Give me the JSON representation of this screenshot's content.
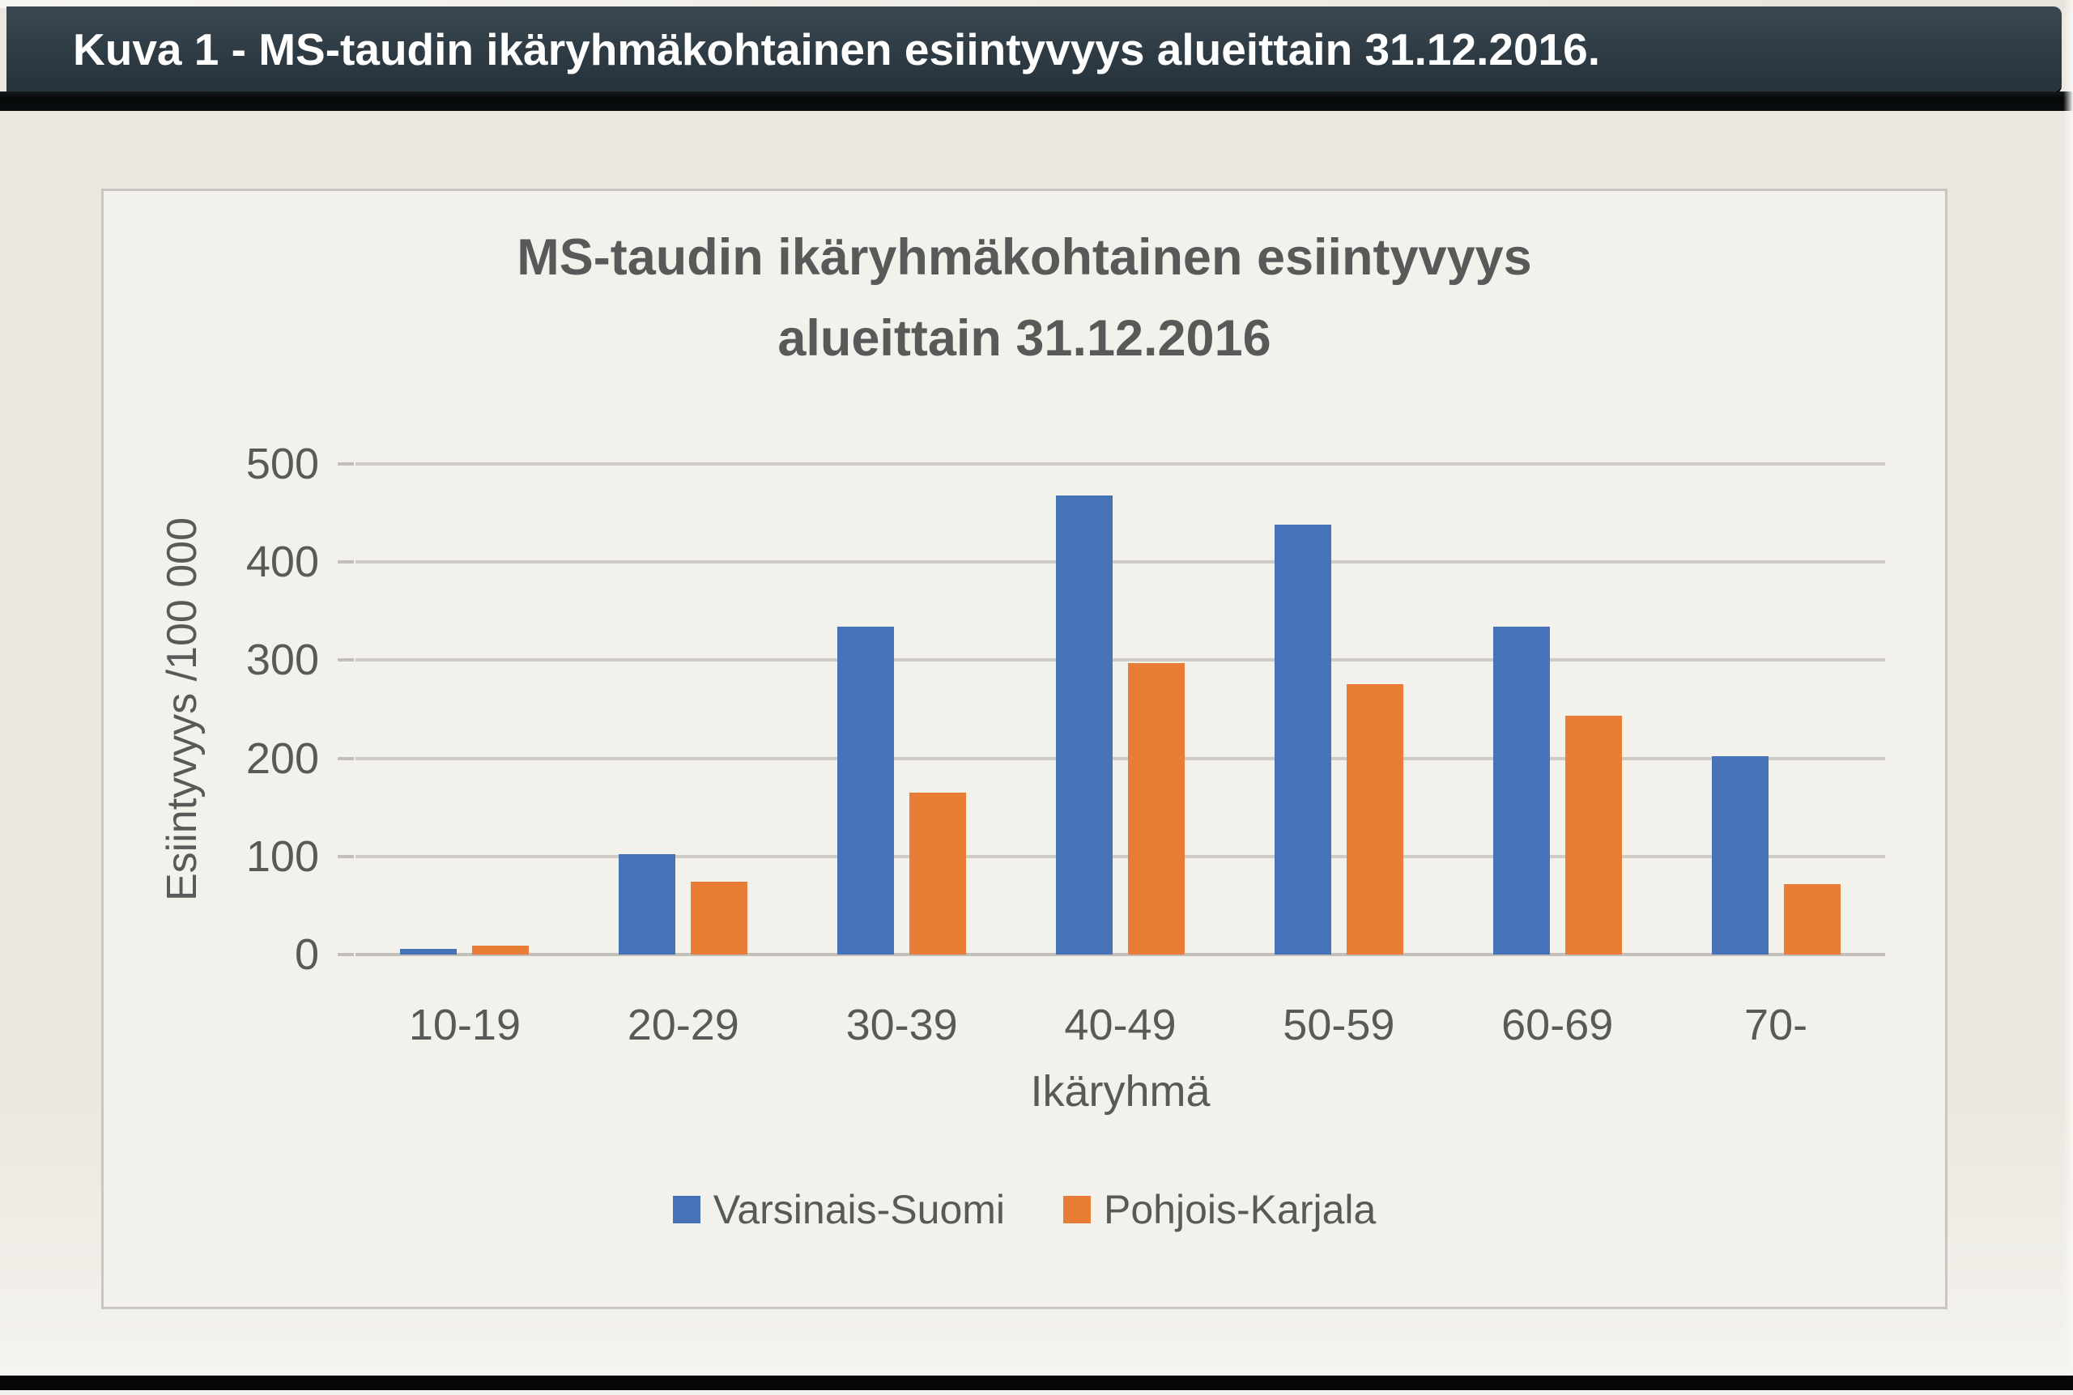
{
  "figure_caption": "Kuva 1 - MS-taudin ikäryhmäkohtainen esiintyvyys alueittain 31.12.2016.",
  "chart_data": {
    "type": "bar",
    "title_line1": "MS-taudin ikäryhmäkohtainen esiintyvyys",
    "title_line2": "alueittain 31.12.2016",
    "categories": [
      "10-19",
      "20-29",
      "30-39",
      "40-49",
      "50-59",
      "60-69",
      "70-"
    ],
    "series": [
      {
        "name": "Varsinais-Suomi",
        "color": "#4673b8",
        "values": [
          6,
          102,
          334,
          468,
          438,
          334,
          202
        ]
      },
      {
        "name": "Pohjois-Karjala",
        "color": "#e87d36",
        "values": [
          9,
          74,
          165,
          297,
          276,
          243,
          72
        ]
      }
    ],
    "xlabel": "Ikäryhmä",
    "ylabel": "Esiintyvyys /100 000",
    "ylim": [
      0,
      500
    ],
    "yticks": [
      0,
      100,
      200,
      300,
      400,
      500
    ],
    "grid": true,
    "legend_position": "bottom"
  },
  "colors": {
    "header_background": "#2e3b44",
    "header_text": "#ffffff",
    "page_background": "#ebe7df",
    "chart_background": "#f3f1eb",
    "chart_border": "#c9c6c1",
    "gridline": "#cfccc6",
    "axis_text": "#595959",
    "series_blue": "#4673b8",
    "series_orange": "#e87d36"
  }
}
